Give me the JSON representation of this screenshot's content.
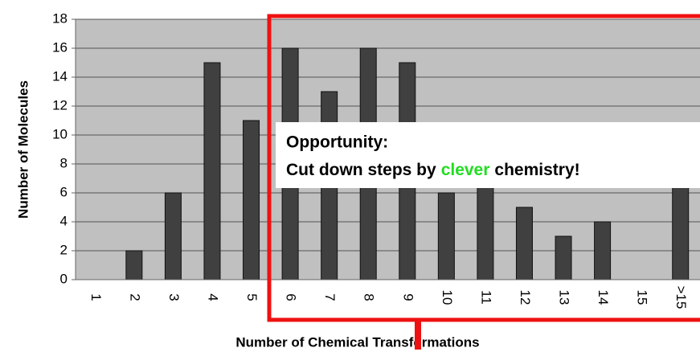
{
  "chart_data": {
    "type": "bar",
    "ylabel": "Number of Molecules",
    "xlabel": "Number of Chemical Transformations",
    "categories": [
      "1",
      "2",
      "3",
      "4",
      "5",
      "6",
      "7",
      "8",
      "9",
      "10",
      "11",
      "12",
      "13",
      "14",
      "15",
      ">15"
    ],
    "values": [
      0,
      2,
      6,
      15,
      11,
      16,
      13,
      16,
      15,
      6,
      8,
      5,
      3,
      4,
      0,
      9
    ],
    "color": "#404040",
    "ylim": [
      0,
      18
    ],
    "yticks": [
      0,
      2,
      4,
      6,
      8,
      10,
      12,
      14,
      16,
      18
    ],
    "grid": true,
    "annotation": {
      "title": "Opportunity:",
      "parts": [
        "Cut down steps by",
        "clever",
        "chemistry!"
      ],
      "highlight_color": "#22dd22",
      "frame_color": "#ee1111"
    }
  }
}
